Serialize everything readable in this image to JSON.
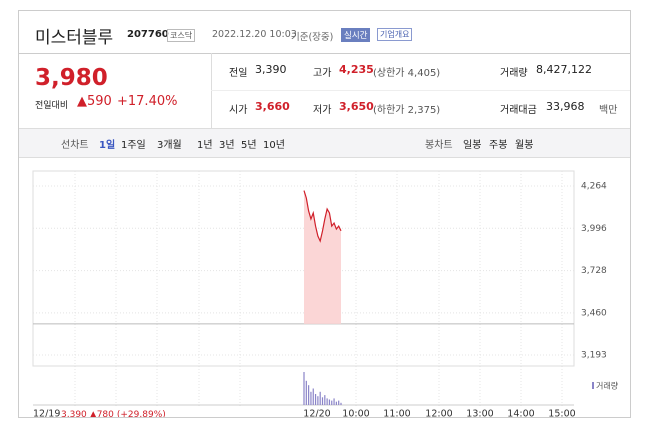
{
  "header": {
    "name": "미스터블루",
    "code": "207760",
    "market": "코스닥",
    "datetime": "2022.12.20 10:03",
    "basis": "기준(장중)",
    "realtime": "실시간",
    "company_info": "기업개요"
  },
  "quote": {
    "price": "3,980",
    "change_label": "전일대비",
    "change": "590",
    "change_pct": "+17.40%"
  },
  "stats": [
    [
      {
        "label": "전일",
        "value": "3,390"
      },
      {
        "label": "고가",
        "value": "4,235",
        "extra": "(상한가 4,405)"
      },
      {
        "label": "거래량",
        "value": "8,427,122"
      }
    ],
    [
      {
        "label": "시가",
        "value": "3,660"
      },
      {
        "label": "저가",
        "value": "3,650",
        "extra": "(하한가 2,375)"
      },
      {
        "label": "거래대금",
        "value": "33,968",
        "extra": "백만"
      }
    ]
  ],
  "tabs": {
    "chart_label": "선차트",
    "periods": [
      "1일",
      "1주일",
      "3개월",
      "1년",
      "3년",
      "5년",
      "10년"
    ],
    "candle_label": "봉차트",
    "candles": [
      "일봉",
      "주봉",
      "월봉"
    ]
  },
  "chart_data": {
    "type": "line",
    "color": "#d0202a",
    "baseline": 3390,
    "values": [
      4235,
      4188,
      4106,
      4055,
      4093,
      4010,
      3947,
      3915,
      3979,
      4055,
      4118,
      4093,
      4010,
      4029,
      3991,
      4010,
      3980
    ],
    "ylim": [
      3193,
      4264
    ],
    "yticks": [
      {
        "value": 4264,
        "label": "4,264"
      },
      {
        "value": 3996,
        "label": "3,996"
      },
      {
        "value": 3728,
        "label": "3,728"
      },
      {
        "value": 3460,
        "label": "3,460"
      },
      {
        "value": 3193,
        "label": "3,193"
      }
    ],
    "xticks": [
      "12/19",
      "12/20",
      "10:00",
      "11:00",
      "12:00",
      "13:00",
      "14:00",
      "15:00"
    ],
    "volume_name": "거래량",
    "volume": [
      30,
      22,
      18,
      12,
      15,
      10,
      8,
      12,
      7,
      9,
      6,
      5,
      4,
      6,
      3,
      4,
      2
    ],
    "footer": {
      "date": "12/19",
      "price": "3,390",
      "change": "780",
      "change_pct": "(+29.89%)"
    }
  }
}
